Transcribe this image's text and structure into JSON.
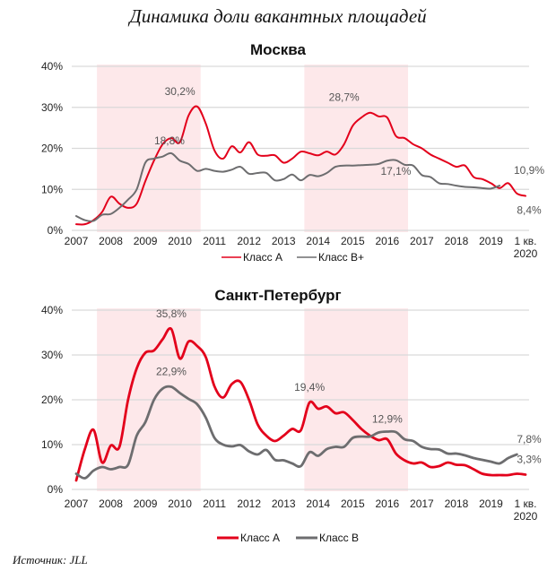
{
  "title": "Динамика доли вакантных площадей",
  "source": "Источник: JLL",
  "colors": {
    "class_a": "#e3001b",
    "class_b": "#6d6d6f",
    "shade": "#fde8ea",
    "grid": "#d9d9d9"
  },
  "chart_data": [
    {
      "type": "line",
      "title": "Москва",
      "xlabel": "",
      "ylabel": "",
      "x_ticks": [
        "2007",
        "2008",
        "2009",
        "2010",
        "2011",
        "2012",
        "2013",
        "2014",
        "2015",
        "2016",
        "2017",
        "2018",
        "2019",
        "1 кв.|2020"
      ],
      "y_ticks": [
        "0%",
        "10%",
        "20%",
        "30%",
        "40%"
      ],
      "ylim": [
        0,
        40
      ],
      "grid": true,
      "legend_position": "bottom-center",
      "shaded_periods": [
        [
          2007.6,
          2010.6
        ],
        [
          2013.6,
          2016.6
        ]
      ],
      "series": [
        {
          "name": "Класс A",
          "color_key": "class_a",
          "x_start": 2007.0,
          "step": 0.25,
          "values": [
            1.5,
            1.5,
            2.5,
            4.5,
            8.2,
            6.5,
            5.5,
            6.5,
            12,
            17,
            21,
            22.5,
            21.5,
            28,
            30.2,
            26,
            19.5,
            17.5,
            20.5,
            19,
            21.5,
            18.5,
            18.2,
            18.3,
            16.5,
            17.5,
            19.2,
            18.8,
            18.3,
            19.2,
            18.5,
            21,
            25.5,
            27.5,
            28.7,
            27.8,
            27.5,
            23,
            22.5,
            21,
            20,
            18.5,
            17.5,
            16.5,
            15.5,
            15.8,
            13,
            12.5,
            11.5,
            10.3,
            11.5,
            9,
            8.4
          ]
        },
        {
          "name": "Класс B+",
          "color_key": "class_b",
          "x_start": 2007.0,
          "step": 0.25,
          "values": [
            3.5,
            2.5,
            2.3,
            3.8,
            4,
            5.5,
            7.5,
            10,
            16.5,
            17.5,
            18,
            18.8,
            17,
            16.2,
            14.5,
            15,
            14.5,
            14.3,
            14.8,
            15.5,
            13.8,
            14,
            14,
            12.2,
            12.5,
            13.6,
            12.2,
            13.5,
            13.2,
            14,
            15.5,
            15.8,
            15.8,
            15.9,
            16,
            16.2,
            17,
            17.1,
            16,
            15.8,
            13.5,
            13,
            11.5,
            11.3,
            10.9,
            10.6,
            10.5,
            10.3,
            10.2,
            10.9
          ]
        }
      ],
      "annotations": [
        {
          "text": "30,2%",
          "series": "Класс A",
          "x": 2010.0,
          "y": 30.2
        },
        {
          "text": "18,8%",
          "series": "Класс B+",
          "x": 2009.75,
          "y": 18.8
        },
        {
          "text": "28,7%",
          "series": "Класс A",
          "x": 2014.75,
          "y": 28.7
        },
        {
          "text": "17,1%",
          "series": "Класс B+",
          "x": 2016.25,
          "y": 17.1
        },
        {
          "text": "10,9%",
          "series": "Класс B+",
          "x": 2020.0,
          "y": 10.9
        },
        {
          "text": "8,4%",
          "series": "Класс A",
          "x": 2020.0,
          "y": 8.4
        }
      ]
    },
    {
      "type": "line",
      "title": "Санкт-Петербург",
      "xlabel": "",
      "ylabel": "",
      "x_ticks": [
        "2007",
        "2008",
        "2009",
        "2010",
        "2011",
        "2012",
        "2013",
        "2014",
        "2015",
        "2016",
        "2017",
        "2018",
        "2019",
        "1 кв.|2020"
      ],
      "y_ticks": [
        "0%",
        "10%",
        "20%",
        "30%",
        "40%"
      ],
      "ylim": [
        0,
        40
      ],
      "grid": true,
      "legend_position": "bottom-center",
      "shaded_periods": [
        [
          2007.6,
          2010.6
        ],
        [
          2013.6,
          2016.6
        ]
      ],
      "series": [
        {
          "name": "Класс A",
          "color_key": "class_a",
          "x_start": 2007.0,
          "step": 0.25,
          "values": [
            2,
            9,
            13.3,
            6,
            9.8,
            9.5,
            20,
            27,
            30.5,
            31,
            33.5,
            35.8,
            29.2,
            33,
            32,
            29.5,
            23,
            20.5,
            23.5,
            24,
            20,
            14.5,
            12,
            10.8,
            12,
            13.5,
            13.2,
            19.4,
            18,
            18.5,
            17,
            17.2,
            15.5,
            13.5,
            12,
            11,
            11.2,
            8,
            6.5,
            5.8,
            6,
            5,
            5.2,
            6,
            5.5,
            5.4,
            4.5,
            3.5,
            3.2,
            3.2,
            3.2,
            3.5,
            3.3
          ]
        },
        {
          "name": "Класс B",
          "color_key": "class_b",
          "x_start": 2007.0,
          "step": 0.25,
          "values": [
            3.5,
            2.5,
            4.2,
            5,
            4.5,
            5,
            5.5,
            12,
            15,
            20,
            22.5,
            22.9,
            21.5,
            20.2,
            19,
            16,
            11.5,
            10,
            9.6,
            9.9,
            8.5,
            7.8,
            8.8,
            6.6,
            6.5,
            5.8,
            5.2,
            8.3,
            7.5,
            9,
            9.5,
            9.5,
            11.5,
            11.8,
            11.8,
            12.7,
            12.9,
            12.8,
            11.2,
            10.8,
            9.5,
            9,
            8.9,
            8,
            8,
            7.6,
            7,
            6.6,
            6.2,
            5.8,
            7,
            7.8
          ]
        }
      ],
      "annotations": [
        {
          "text": "35,8%",
          "series": "Класс A",
          "x": 2009.75,
          "y": 35.8
        },
        {
          "text": "22,9%",
          "series": "Класс B",
          "x": 2009.75,
          "y": 22.9
        },
        {
          "text": "19,4%",
          "series": "Класс A",
          "x": 2013.75,
          "y": 19.4
        },
        {
          "text": "12,9%",
          "series": "Класс B",
          "x": 2016.0,
          "y": 12.9
        },
        {
          "text": "7,8%",
          "series": "Класс B",
          "x": 2020.0,
          "y": 7.8
        },
        {
          "text": "3,3%",
          "series": "Класс A",
          "x": 2020.0,
          "y": 3.3
        }
      ]
    }
  ]
}
